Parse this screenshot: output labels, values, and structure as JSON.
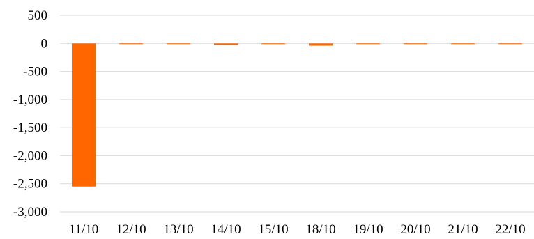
{
  "chart_data": {
    "type": "bar",
    "title": "",
    "xlabel": "",
    "ylabel": "",
    "categories": [
      "11/10",
      "12/10",
      "13/10",
      "14/10",
      "15/10",
      "18/10",
      "19/10",
      "20/10",
      "21/10",
      "22/10"
    ],
    "series": [
      {
        "values": [
          -2550,
          -3,
          -3,
          -25,
          -12,
          -40,
          -8,
          -3,
          -8,
          -10
        ]
      }
    ],
    "ylim": [
      -3000,
      500
    ],
    "yticks": [
      500,
      0,
      -500,
      -1000,
      -1500,
      -2000,
      -2500,
      -3000
    ],
    "ytick_labels": [
      "500",
      "0",
      "-500",
      "-1,000",
      "-1,500",
      "-2,000",
      "-2,500",
      "-3,000"
    ],
    "grid": true,
    "legend": "none",
    "colors": {
      "bar": "#ff6600",
      "grid": "#d9d9d9",
      "text": "#000000"
    }
  }
}
